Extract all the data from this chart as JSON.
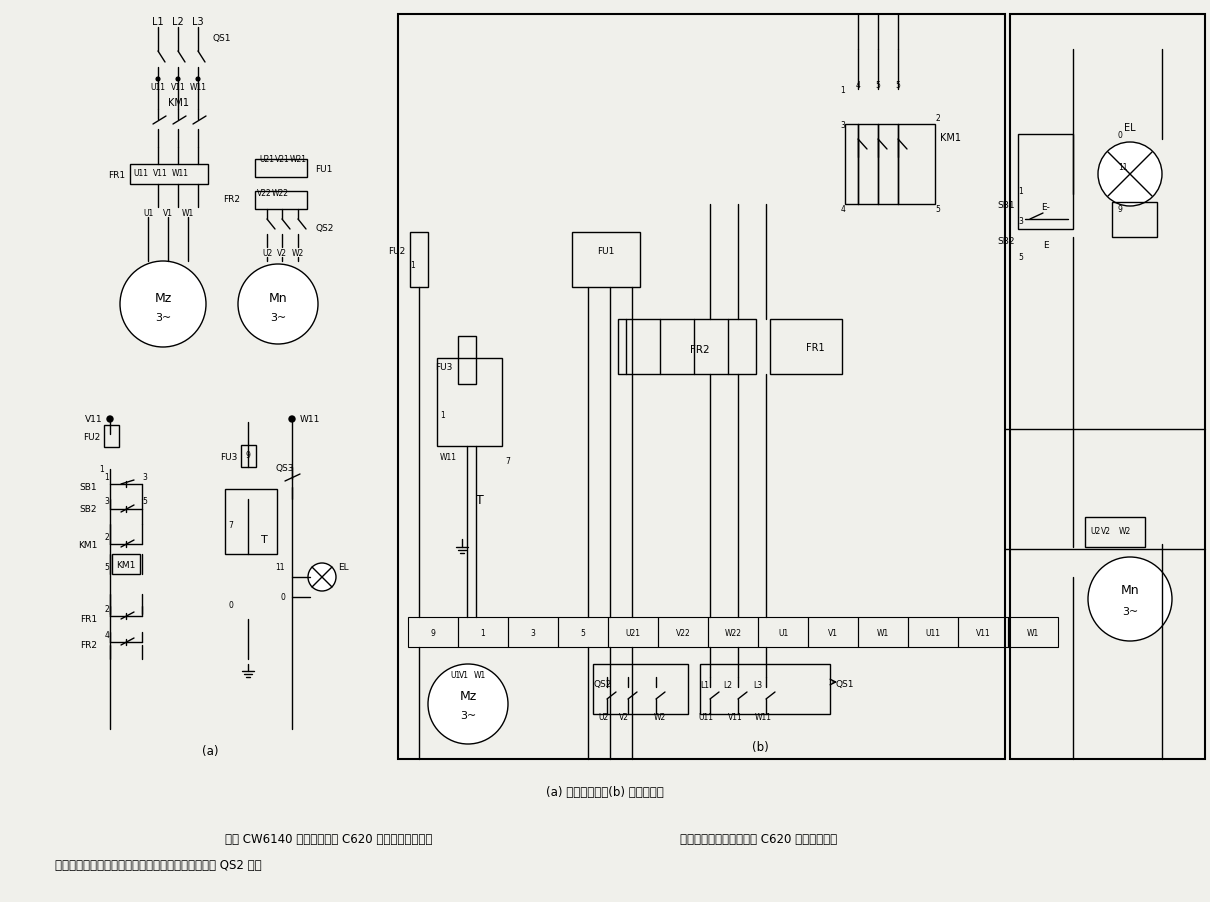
{
  "bg": "#f0f0eb",
  "fg": "#1a1a1a",
  "caption": "(a) 电气原理图；(b) 电气接线图",
  "line1": "所示 CW6140 型车床电路和 C620 型车床电路类似，",
  "line1r": "制。但配电板的施工不如 C620 典型和合理。",
  "line2": "是典型单向起动连续运转的电路，冷却泵电机用开关 QS2 来控"
}
